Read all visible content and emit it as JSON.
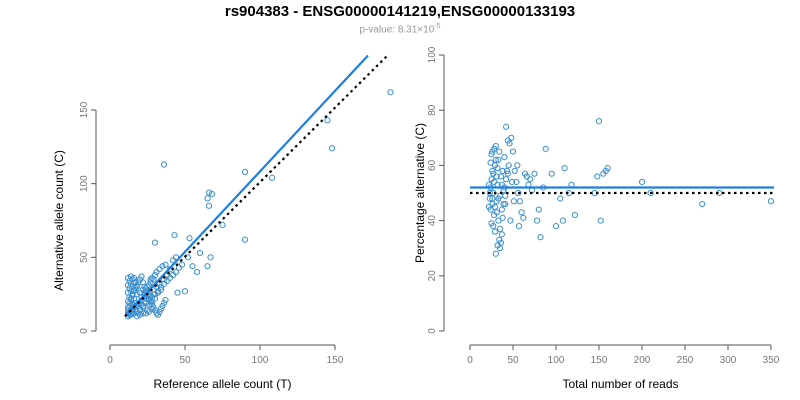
{
  "title": "rs904383 - ENSG00000141219,ENSG00000133193",
  "subtitle": {
    "prefix": "p-value: 8.31×10",
    "exponent": "-5"
  },
  "colors": {
    "points": "#3a8fd0",
    "fit_line": "#1e7fe0",
    "reference_line": "#000000",
    "axis": "#555555",
    "tick_label": "#777777"
  },
  "chart_data": [
    {
      "type": "scatter",
      "xlabel": "Reference allele count (T)",
      "ylabel": "Alternative allele count (C)",
      "xlim": [
        0,
        180
      ],
      "ylim": [
        0,
        160
      ],
      "xticks": [
        0,
        50,
        100,
        150
      ],
      "yticks": [
        0,
        50,
        100,
        150
      ],
      "grid": false,
      "lines": {
        "fit": {
          "style": "solid",
          "from": [
            10,
            10
          ],
          "to": [
            172,
            187
          ]
        },
        "reference": {
          "style": "dotted",
          "from": [
            10,
            10
          ],
          "to": [
            185,
            187
          ]
        }
      },
      "points": [
        [
          12,
          10
        ],
        [
          13,
          11
        ],
        [
          14,
          12
        ],
        [
          15,
          13
        ],
        [
          12,
          14
        ],
        [
          14,
          15
        ],
        [
          16,
          16
        ],
        [
          13,
          17
        ],
        [
          15,
          18
        ],
        [
          17,
          19
        ],
        [
          12,
          20
        ],
        [
          14,
          21
        ],
        [
          16,
          22
        ],
        [
          13,
          23
        ],
        [
          15,
          24
        ],
        [
          18,
          25
        ],
        [
          12,
          26
        ],
        [
          14,
          27
        ],
        [
          16,
          28
        ],
        [
          13,
          29
        ],
        [
          15,
          30
        ],
        [
          12,
          31
        ],
        [
          14,
          32
        ],
        [
          17,
          33
        ],
        [
          13,
          34
        ],
        [
          15,
          35
        ],
        [
          12,
          36
        ],
        [
          14,
          37
        ],
        [
          16,
          36
        ],
        [
          19,
          12
        ],
        [
          20,
          14
        ],
        [
          22,
          16
        ],
        [
          21,
          18
        ],
        [
          23,
          20
        ],
        [
          24,
          22
        ],
        [
          18,
          10
        ],
        [
          20,
          11
        ],
        [
          22,
          12
        ],
        [
          25,
          14
        ],
        [
          19,
          17
        ],
        [
          21,
          21
        ],
        [
          23,
          24
        ],
        [
          25,
          27
        ],
        [
          20,
          26
        ],
        [
          24,
          29
        ],
        [
          26,
          31
        ],
        [
          22,
          28
        ],
        [
          27,
          33
        ],
        [
          28,
          36
        ],
        [
          30,
          38
        ],
        [
          31,
          40
        ],
        [
          29,
          35
        ],
        [
          33,
          42
        ],
        [
          35,
          44
        ],
        [
          26,
          18
        ],
        [
          28,
          20
        ],
        [
          30,
          22
        ],
        [
          27,
          24
        ],
        [
          32,
          26
        ],
        [
          34,
          28
        ],
        [
          24,
          12
        ],
        [
          26,
          13
        ],
        [
          28,
          15
        ],
        [
          18,
          30
        ],
        [
          16,
          33
        ],
        [
          29,
          25
        ],
        [
          31,
          30
        ],
        [
          33,
          32
        ],
        [
          36,
          35
        ],
        [
          38,
          38
        ],
        [
          40,
          42
        ],
        [
          37,
          45
        ],
        [
          42,
          48
        ],
        [
          44,
          50
        ],
        [
          30,
          60
        ],
        [
          36,
          113
        ],
        [
          43,
          65
        ],
        [
          45,
          26
        ],
        [
          50,
          27
        ],
        [
          52,
          50
        ],
        [
          53,
          63
        ],
        [
          55,
          44
        ],
        [
          58,
          40
        ],
        [
          60,
          53
        ],
        [
          65,
          44
        ],
        [
          67,
          50
        ],
        [
          66,
          85
        ],
        [
          65,
          90
        ],
        [
          66,
          94
        ],
        [
          68,
          93
        ],
        [
          75,
          72
        ],
        [
          90,
          62
        ],
        [
          90,
          108
        ],
        [
          108,
          104
        ],
        [
          145,
          143
        ],
        [
          148,
          124
        ],
        [
          187,
          162
        ],
        [
          12,
          12
        ],
        [
          13,
          13
        ],
        [
          15,
          15
        ],
        [
          17,
          17
        ],
        [
          19,
          19
        ],
        [
          21,
          23
        ],
        [
          23,
          26
        ],
        [
          25,
          30
        ],
        [
          27,
          35
        ],
        [
          14,
          11
        ],
        [
          16,
          12
        ],
        [
          18,
          13
        ],
        [
          20,
          15
        ],
        [
          22,
          17
        ],
        [
          24,
          19
        ],
        [
          26,
          21
        ],
        [
          28,
          23
        ],
        [
          30,
          25
        ],
        [
          32,
          27
        ],
        [
          34,
          30
        ],
        [
          36,
          32
        ],
        [
          38,
          34
        ],
        [
          40,
          36
        ],
        [
          42,
          38
        ],
        [
          44,
          40
        ],
        [
          46,
          43
        ],
        [
          48,
          45
        ],
        [
          12,
          16
        ],
        [
          13,
          19
        ],
        [
          14,
          22
        ],
        [
          15,
          25
        ],
        [
          16,
          27
        ],
        [
          17,
          29
        ],
        [
          18,
          31
        ],
        [
          19,
          33
        ],
        [
          20,
          35
        ],
        [
          21,
          37
        ],
        [
          22,
          33
        ],
        [
          23,
          30
        ],
        [
          24,
          27
        ],
        [
          25,
          24
        ],
        [
          26,
          22
        ],
        [
          27,
          20
        ],
        [
          28,
          18
        ],
        [
          29,
          16
        ],
        [
          30,
          14
        ],
        [
          31,
          12
        ],
        [
          32,
          11
        ],
        [
          33,
          13
        ],
        [
          34,
          15
        ],
        [
          35,
          17
        ],
        [
          36,
          19
        ],
        [
          37,
          21
        ]
      ]
    },
    {
      "type": "scatter",
      "xlabel": "Total number of reads",
      "ylabel": "Percentage alternative (C)",
      "xlim": [
        0,
        350
      ],
      "ylim": [
        0,
        100
      ],
      "xticks": [
        0,
        50,
        100,
        150,
        200,
        250,
        300,
        350
      ],
      "yticks": [
        0,
        20,
        40,
        60,
        80,
        100
      ],
      "grid": false,
      "lines": {
        "fit": {
          "style": "solid",
          "y": 52
        },
        "reference": {
          "style": "dotted",
          "y": 50
        }
      },
      "points": [
        [
          22,
          45
        ],
        [
          23,
          48
        ],
        [
          24,
          52
        ],
        [
          25,
          55
        ],
        [
          26,
          58
        ],
        [
          27,
          50
        ],
        [
          28,
          42
        ],
        [
          29,
          60
        ],
        [
          30,
          62
        ],
        [
          31,
          47
        ],
        [
          32,
          53
        ],
        [
          33,
          40
        ],
        [
          34,
          65
        ],
        [
          35,
          37
        ],
        [
          36,
          56
        ],
        [
          37,
          44
        ],
        [
          38,
          58
        ],
        [
          39,
          51
        ],
        [
          40,
          63
        ],
        [
          41,
          49
        ],
        [
          24,
          61
        ],
        [
          25,
          39
        ],
        [
          26,
          46
        ],
        [
          27,
          57
        ],
        [
          28,
          54
        ],
        [
          29,
          36
        ],
        [
          30,
          67
        ],
        [
          31,
          43
        ],
        [
          32,
          59
        ],
        [
          33,
          48
        ],
        [
          34,
          33
        ],
        [
          35,
          30
        ],
        [
          36,
          32
        ],
        [
          37,
          35
        ],
        [
          38,
          41
        ],
        [
          39,
          46
        ],
        [
          40,
          52
        ],
        [
          42,
          55
        ],
        [
          44,
          57
        ],
        [
          45,
          60
        ],
        [
          46,
          68
        ],
        [
          48,
          70
        ],
        [
          50,
          65
        ],
        [
          52,
          58
        ],
        [
          54,
          54
        ],
        [
          56,
          50
        ],
        [
          58,
          47
        ],
        [
          60,
          43
        ],
        [
          62,
          41
        ],
        [
          64,
          57
        ],
        [
          66,
          56
        ],
        [
          68,
          53
        ],
        [
          70,
          55
        ],
        [
          72,
          51
        ],
        [
          75,
          57
        ],
        [
          78,
          40
        ],
        [
          80,
          44
        ],
        [
          82,
          34
        ],
        [
          85,
          52
        ],
        [
          88,
          66
        ],
        [
          95,
          57
        ],
        [
          100,
          38
        ],
        [
          105,
          48
        ],
        [
          108,
          40
        ],
        [
          110,
          59
        ],
        [
          115,
          50
        ],
        [
          118,
          53
        ],
        [
          122,
          42
        ],
        [
          145,
          50
        ],
        [
          148,
          56
        ],
        [
          150,
          76
        ],
        [
          152,
          40
        ],
        [
          155,
          57
        ],
        [
          158,
          58
        ],
        [
          160,
          59
        ],
        [
          200,
          54
        ],
        [
          210,
          50
        ],
        [
          270,
          46
        ],
        [
          290,
          50
        ],
        [
          350,
          47
        ],
        [
          23,
          50
        ],
        [
          25,
          64
        ],
        [
          27,
          38
        ],
        [
          29,
          45
        ],
        [
          31,
          56
        ],
        [
          33,
          62
        ],
        [
          35,
          49
        ],
        [
          37,
          53
        ],
        [
          41,
          46
        ],
        [
          43,
          58
        ],
        [
          47,
          40
        ],
        [
          49,
          54
        ],
        [
          51,
          47
        ],
        [
          55,
          60
        ],
        [
          57,
          38
        ],
        [
          42,
          74
        ],
        [
          44,
          69
        ],
        [
          30,
          28
        ],
        [
          32,
          31
        ],
        [
          26,
          65
        ],
        [
          28,
          66
        ],
        [
          22,
          53
        ],
        [
          24,
          44
        ],
        [
          26,
          48
        ]
      ]
    }
  ]
}
